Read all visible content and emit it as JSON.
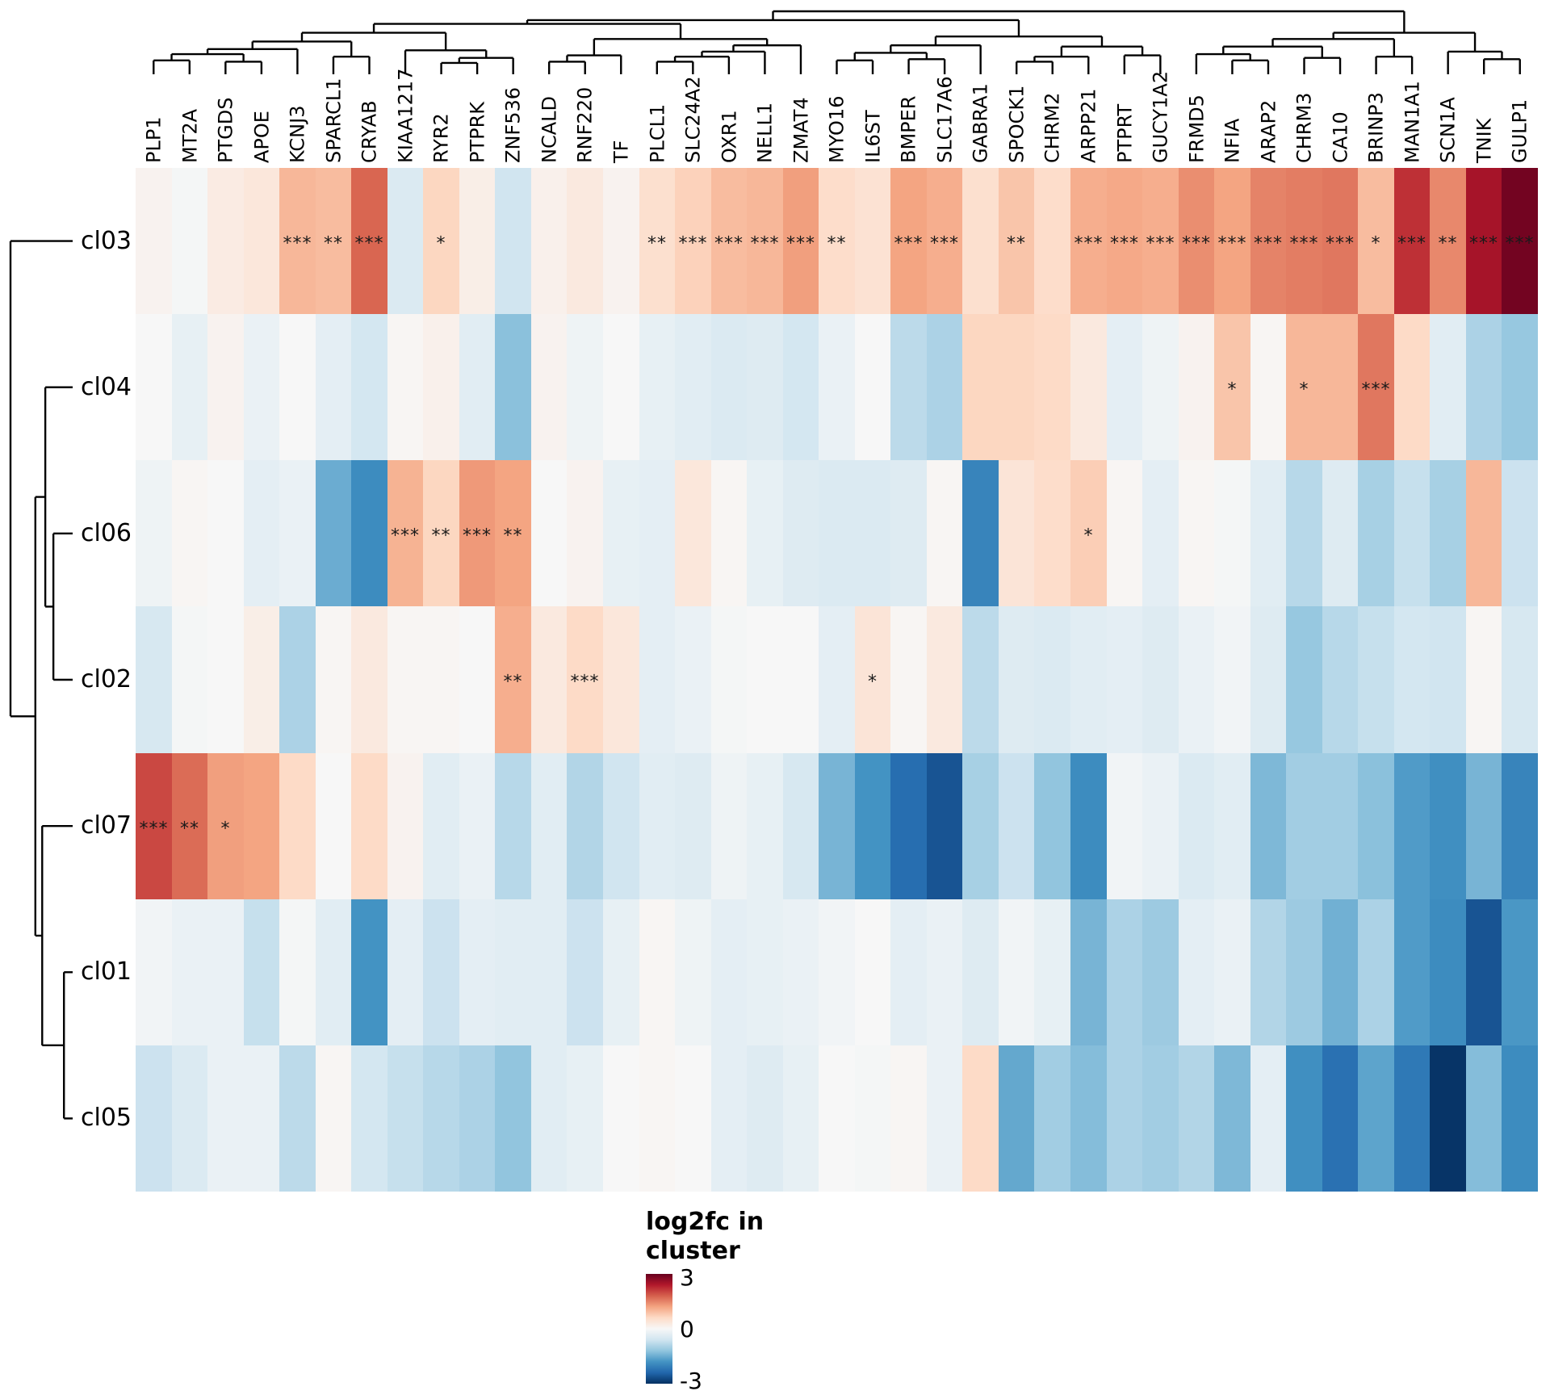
{
  "chart_data": {
    "type": "heatmap",
    "genes": [
      "PLP1",
      "MT2A",
      "PTGDS",
      "APOE",
      "KCNJ3",
      "SPARCL1",
      "CRYAB",
      "KIAA1217",
      "RYR2",
      "PTPRK",
      "ZNF536",
      "NCALD",
      "RNF220",
      "TF",
      "PLCL1",
      "SLC24A2",
      "OXR1",
      "NELL1",
      "ZMAT4",
      "MYO16",
      "IL6ST",
      "BMPER",
      "SLC17A6",
      "GABRA1",
      "SPOCK1",
      "CHRM2",
      "ARPP21",
      "PTPRT",
      "GUCY1A2",
      "FRMD5",
      "NFIA",
      "ARAP2",
      "CHRM3",
      "CA10",
      "BRINP3",
      "MAN1A1",
      "SCN1A",
      "TNIK",
      "GULP1"
    ],
    "clusters": [
      "cl03",
      "cl04",
      "cl06",
      "cl02",
      "cl07",
      "cl01",
      "cl05"
    ],
    "values": [
      [
        0.1,
        -0.05,
        0.25,
        0.35,
        1.0,
        0.95,
        1.75,
        -0.45,
        0.65,
        0.2,
        -0.6,
        0.15,
        0.3,
        0.1,
        0.5,
        0.7,
        0.95,
        1.0,
        1.25,
        0.55,
        0.45,
        1.2,
        1.1,
        0.5,
        0.85,
        0.55,
        1.1,
        1.15,
        1.1,
        1.4,
        1.2,
        1.5,
        1.55,
        1.6,
        0.95,
        2.2,
        1.45,
        2.5,
        2.9
      ],
      [
        0.0,
        -0.25,
        0.1,
        -0.2,
        0.0,
        -0.3,
        -0.55,
        0.05,
        0.15,
        -0.35,
        -1.25,
        0.1,
        -0.15,
        0.0,
        -0.25,
        -0.35,
        -0.45,
        -0.4,
        -0.55,
        -0.2,
        0.0,
        -0.8,
        -0.95,
        0.65,
        0.65,
        0.6,
        0.3,
        -0.3,
        -0.15,
        0.1,
        0.85,
        0.05,
        1.0,
        1.0,
        1.6,
        0.6,
        -0.35,
        -0.95,
        -1.15
      ],
      [
        -0.15,
        0.05,
        0.0,
        -0.3,
        -0.2,
        -1.5,
        -1.9,
        1.05,
        0.65,
        1.3,
        1.2,
        0.0,
        0.1,
        -0.25,
        -0.3,
        0.35,
        0.05,
        -0.25,
        -0.4,
        -0.45,
        -0.45,
        -0.4,
        0.05,
        -2.0,
        0.4,
        0.55,
        0.75,
        0.05,
        -0.3,
        0.05,
        -0.05,
        -0.35,
        -0.85,
        -0.4,
        -1.0,
        -0.7,
        -1.0,
        1.0,
        -0.65
      ],
      [
        -0.5,
        -0.05,
        0.0,
        0.2,
        -0.95,
        0.05,
        0.3,
        0.05,
        0.05,
        0.0,
        1.1,
        0.3,
        0.6,
        0.35,
        -0.3,
        -0.2,
        -0.05,
        0.0,
        0.0,
        -0.3,
        0.4,
        0.05,
        0.3,
        -0.8,
        -0.4,
        -0.45,
        -0.35,
        -0.3,
        -0.4,
        -0.2,
        -0.1,
        -0.4,
        -1.15,
        -0.85,
        -0.7,
        -0.55,
        -0.6,
        0.05,
        -0.5
      ],
      [
        2.0,
        1.7,
        1.25,
        1.2,
        0.6,
        0.0,
        0.6,
        0.1,
        -0.35,
        -0.2,
        -0.85,
        -0.35,
        -0.9,
        -0.6,
        -0.35,
        -0.4,
        -0.15,
        -0.25,
        -0.5,
        -1.4,
        -1.8,
        -2.3,
        -2.6,
        -1.0,
        -0.65,
        -1.2,
        -1.9,
        -0.1,
        -0.2,
        -0.45,
        -0.35,
        -1.35,
        -1.05,
        -1.05,
        -1.25,
        -1.7,
        -1.85,
        -1.4,
        -2.0
      ],
      [
        -0.1,
        -0.2,
        -0.2,
        -0.7,
        -0.05,
        -0.35,
        -1.8,
        -0.3,
        -0.65,
        -0.3,
        -0.35,
        -0.35,
        -0.65,
        -0.25,
        0.05,
        -0.15,
        -0.3,
        -0.25,
        -0.2,
        -0.1,
        0.0,
        -0.3,
        -0.2,
        -0.4,
        -0.1,
        -0.25,
        -1.4,
        -0.95,
        -1.1,
        -0.3,
        -0.2,
        -0.9,
        -1.1,
        -1.45,
        -0.95,
        -1.7,
        -1.9,
        -2.6,
        -1.75
      ],
      [
        -0.65,
        -0.45,
        -0.2,
        -0.2,
        -0.8,
        0.05,
        -0.55,
        -0.7,
        -0.85,
        -0.95,
        -1.2,
        -0.35,
        -0.25,
        0.0,
        0.05,
        0.0,
        -0.3,
        -0.4,
        -0.25,
        0.0,
        -0.05,
        0.05,
        -0.2,
        0.6,
        -1.55,
        -1.05,
        -1.3,
        -0.95,
        -1.05,
        -0.9,
        -1.35,
        -0.3,
        -1.85,
        -2.25,
        -1.6,
        -2.15,
        -2.95,
        -1.3,
        -1.9
      ]
    ],
    "significance": [
      [
        "",
        "",
        "",
        "",
        "***",
        "**",
        "***",
        "",
        "*",
        "",
        "",
        "",
        "",
        "",
        "**",
        "***",
        "***",
        "***",
        "***",
        "**",
        "",
        "***",
        "***",
        "",
        "**",
        "",
        "***",
        "***",
        "***",
        "***",
        "***",
        "***",
        "***",
        "***",
        "*",
        "***",
        "**",
        "***",
        "***"
      ],
      [
        "",
        "",
        "",
        "",
        "",
        "",
        "",
        "",
        "",
        "",
        "",
        "",
        "",
        "",
        "",
        "",
        "",
        "",
        "",
        "",
        "",
        "",
        "",
        "",
        "",
        "",
        "",
        "",
        "",
        "",
        "*",
        "",
        "*",
        "",
        "***",
        "",
        "",
        "",
        ""
      ],
      [
        "",
        "",
        "",
        "",
        "",
        "",
        "",
        "***",
        "**",
        "***",
        "**",
        "",
        "",
        "",
        "",
        "",
        "",
        "",
        "",
        "",
        "",
        "",
        "",
        "",
        "",
        "",
        "*",
        "",
        "",
        "",
        "",
        "",
        "",
        "",
        "",
        "",
        "",
        "",
        ""
      ],
      [
        "",
        "",
        "",
        "",
        "",
        "",
        "",
        "",
        "",
        "",
        "**",
        "",
        "***",
        "",
        "",
        "",
        "",
        "",
        "",
        "",
        "*",
        "",
        "",
        "",
        "",
        "",
        "",
        "",
        "",
        "",
        "",
        "",
        "",
        "",
        "",
        "",
        "",
        "",
        ""
      ],
      [
        "***",
        "**",
        "*",
        "",
        "",
        "",
        "",
        "",
        "",
        "",
        "",
        "",
        "",
        "",
        "",
        "",
        "",
        "",
        "",
        "",
        "",
        "",
        "",
        "",
        "",
        "",
        "",
        "",
        "",
        "",
        "",
        "",
        "",
        "",
        "",
        "",
        "",
        "",
        ""
      ],
      [
        "",
        "",
        "",
        "",
        "",
        "",
        "",
        "",
        "",
        "",
        "",
        "",
        "",
        "",
        "",
        "",
        "",
        "",
        "",
        "",
        "",
        "",
        "",
        "",
        "",
        "",
        "",
        "",
        "",
        "",
        "",
        "",
        "",
        "",
        "",
        "",
        "",
        "",
        ""
      ],
      [
        "",
        "",
        "",
        "",
        "",
        "",
        "",
        "",
        "",
        "",
        "",
        "",
        "",
        "",
        "",
        "",
        "",
        "",
        "",
        "",
        "",
        "",
        "",
        "",
        "",
        "",
        "",
        "",
        "",
        "",
        "",
        "",
        "",
        "",
        "",
        "",
        "",
        "",
        ""
      ]
    ],
    "value_range": [
      -3,
      3
    ],
    "colormap_anchors": [
      "#053061",
      "#2166ac",
      "#4393c3",
      "#92c5de",
      "#d1e5f0",
      "#f7f7f7",
      "#fddbc7",
      "#f4a582",
      "#d6604d",
      "#b2182b",
      "#67001f"
    ],
    "legend": {
      "title_line1": "log2fc in",
      "title_line2": "cluster",
      "tick_labels": [
        "3",
        "0",
        "-3"
      ],
      "tick_values": [
        3,
        0,
        -3
      ]
    },
    "col_dendrogram": {
      "h": 1.0,
      "c": [
        {
          "h": 0.86,
          "c": [
            {
              "h": 0.8,
              "c": [
                {
                  "h": 0.66,
                  "c": [
                    {
                      "h": 0.52,
                      "c": [
                        {
                          "h": 0.4,
                          "c": [
                            {
                              "h": 0.32,
                              "c": [
                                {
                                  "h": 0.22,
                                  "c": [
                                    0,
                                    1
                                  ]
                                },
                                {
                                  "h": 0.2,
                                  "c": [
                                    2,
                                    3
                                  ]
                                }
                              ]
                            },
                            4
                          ]
                        },
                        {
                          "h": 0.28,
                          "c": [
                            5,
                            6
                          ]
                        }
                      ]
                    },
                    {
                      "h": 0.38,
                      "c": [
                        7,
                        {
                          "h": 0.26,
                          "c": [
                            {
                              "h": 0.18,
                              "c": [
                                8,
                                9
                              ]
                            },
                            10
                          ]
                        }
                      ]
                    }
                  ]
                },
                {
                  "h": 0.56,
                  "c": [
                    {
                      "h": 0.3,
                      "c": [
                        {
                          "h": 0.2,
                          "c": [
                            11,
                            12
                          ]
                        },
                        13
                      ]
                    },
                    {
                      "h": 0.46,
                      "c": [
                        {
                          "h": 0.36,
                          "c": [
                            {
                              "h": 0.28,
                              "c": [
                                {
                                  "h": 0.2,
                                  "c": [
                                    14,
                                    15
                                  ]
                                },
                                16
                              ]
                            },
                            17
                          ]
                        },
                        18
                      ]
                    }
                  ]
                }
              ]
            },
            {
              "h": 0.6,
              "c": [
                {
                  "h": 0.46,
                  "c": [
                    {
                      "h": 0.34,
                      "c": [
                        {
                          "h": 0.22,
                          "c": [
                            19,
                            20
                          ]
                        },
                        {
                          "h": 0.24,
                          "c": [
                            21,
                            22
                          ]
                        }
                      ]
                    },
                    23
                  ]
                },
                {
                  "h": 0.44,
                  "c": [
                    {
                      "h": 0.28,
                      "c": [
                        {
                          "h": 0.2,
                          "c": [
                            24,
                            25
                          ]
                        },
                        26
                      ]
                    },
                    {
                      "h": 0.3,
                      "c": [
                        27,
                        28
                      ]
                    }
                  ]
                }
              ]
            }
          ]
        },
        {
          "h": 0.66,
          "c": [
            {
              "h": 0.56,
              "c": [
                {
                  "h": 0.44,
                  "c": [
                    {
                      "h": 0.32,
                      "c": [
                        29,
                        {
                          "h": 0.22,
                          "c": [
                            30,
                            31
                          ]
                        }
                      ]
                    },
                    {
                      "h": 0.26,
                      "c": [
                        32,
                        33
                      ]
                    }
                  ]
                },
                {
                  "h": 0.28,
                  "c": [
                    34,
                    35
                  ]
                }
              ]
            },
            {
              "h": 0.36,
              "c": [
                36,
                {
                  "h": 0.24,
                  "c": [
                    37,
                    38
                  ]
                }
              ]
            }
          ]
        }
      ]
    },
    "row_dendrogram": {
      "h": 1.0,
      "c": [
        0,
        {
          "h": 0.6,
          "c": [
            {
              "h": 0.44,
              "c": [
                1,
                {
                  "h": 0.31,
                  "c": [
                    2,
                    3
                  ]
                }
              ]
            },
            {
              "h": 0.49,
              "c": [
                4,
                {
                  "h": 0.14,
                  "c": [
                    5,
                    6
                  ]
                }
              ]
            }
          ]
        }
      ]
    }
  }
}
